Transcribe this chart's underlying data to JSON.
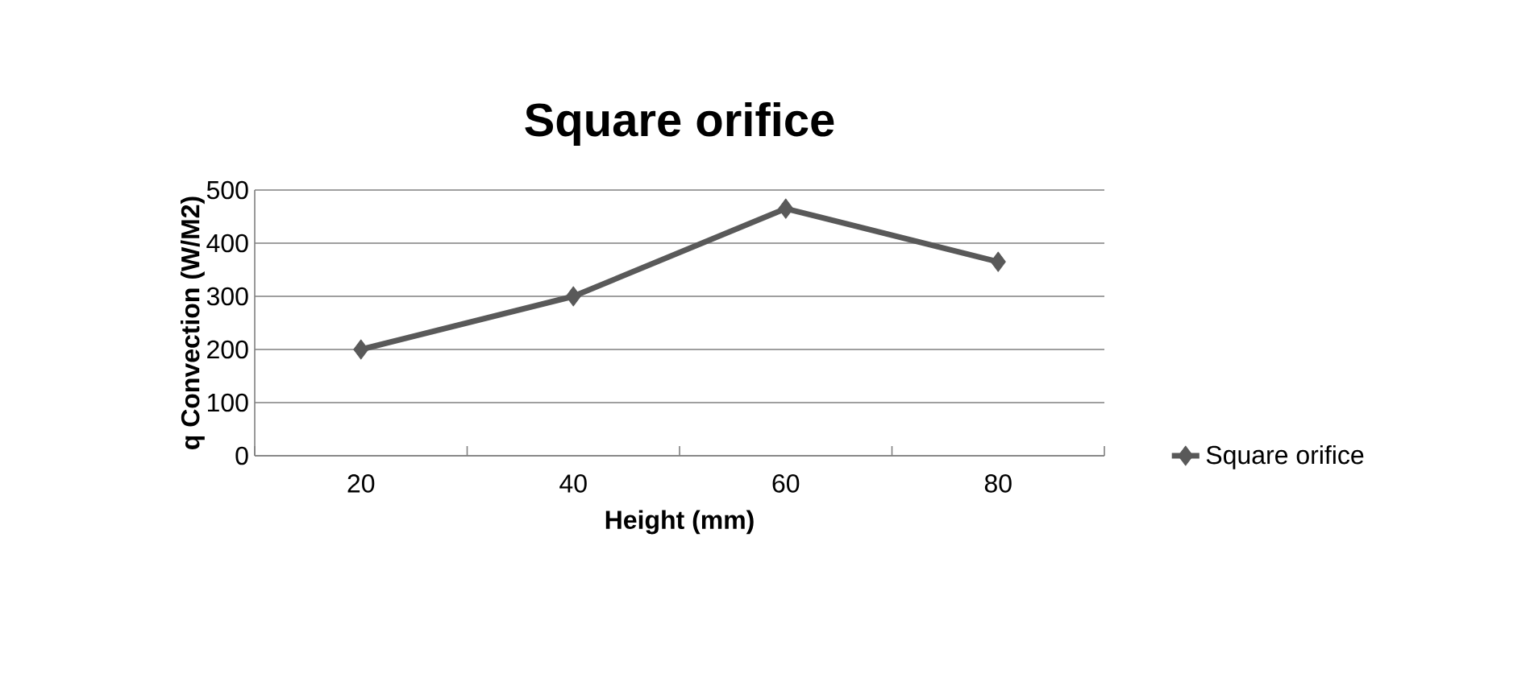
{
  "chart_data": {
    "type": "line",
    "title": "Square orifice",
    "xlabel": "Height (mm)",
    "ylabel": "q Convection  (W/M2)",
    "categories": [
      "20",
      "40",
      "60",
      "80"
    ],
    "series": [
      {
        "name": "Square orifice",
        "color": "#595959",
        "values": [
          200,
          300,
          465,
          365
        ]
      }
    ],
    "ylim": [
      0,
      500
    ],
    "yticks": [
      0,
      100,
      200,
      300,
      400,
      500
    ],
    "grid": "y",
    "legend": "right",
    "marker": "diamond",
    "line_style": "solid"
  }
}
